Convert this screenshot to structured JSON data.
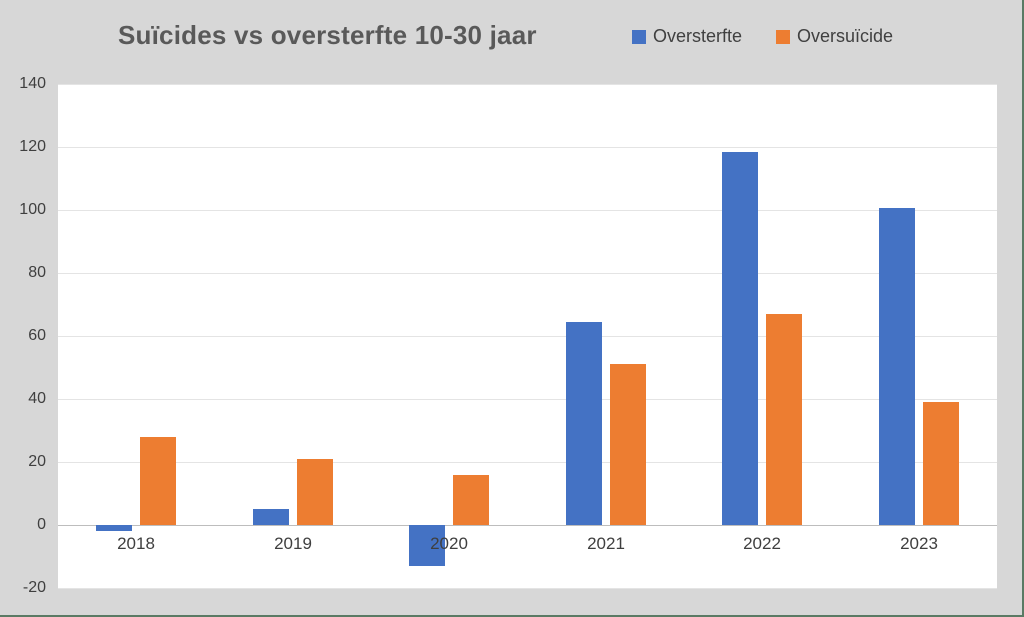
{
  "window": {
    "background_color": "#d7d7d7",
    "edge_color": "#5a7a64"
  },
  "chart_data": {
    "type": "bar",
    "title": "Suïcides vs oversterfte 10-30 jaar",
    "categories": [
      "2018",
      "2019",
      "2020",
      "2021",
      "2022",
      "2023"
    ],
    "series": [
      {
        "name": "Oversterfte",
        "color": "#4472c4",
        "values": [
          -2,
          5,
          -13,
          64.5,
          118.5,
          100.5
        ]
      },
      {
        "name": "Oversuïcide",
        "color": "#ed7d31",
        "values": [
          28,
          21,
          16,
          51,
          67,
          39
        ]
      }
    ],
    "xlabel": "",
    "ylabel": "",
    "ylim": [
      -20,
      140
    ],
    "ytick_step": 20,
    "ytick_labels": [
      "-20",
      "0",
      "20",
      "40",
      "60",
      "80",
      "100",
      "120",
      "140"
    ],
    "grid": true,
    "gridline_color": "#e4e4e4",
    "zero_axis_color": "#bdbdbd",
    "plot_background": "#ffffff",
    "legend_position": "top-right",
    "title_color": "#595959",
    "tick_label_color": "#3f3f3f"
  }
}
